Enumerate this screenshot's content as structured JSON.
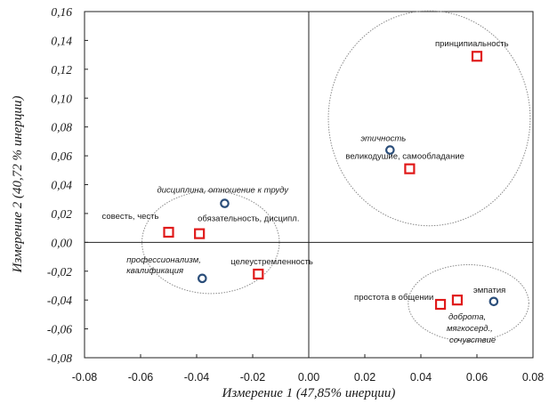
{
  "chart_data": {
    "type": "scatter",
    "title": "",
    "xlabel": "Измерение 1 (47,85% инерции)",
    "ylabel": "Измерение 2 (40,72 % инерции)",
    "xlim": [
      -0.08,
      0.08
    ],
    "ylim": [
      -0.08,
      0.16
    ],
    "x_ticks": [
      "-0.08",
      "-0.06",
      "-0.04",
      "-0.02",
      "0.00",
      "0.02",
      "0.04",
      "0.06",
      "0.08"
    ],
    "y_ticks": [
      "0,16",
      "0,14",
      "0,12",
      "0,10",
      "0,08",
      "0,06",
      "0,04",
      "0,02",
      "0,00",
      "-0,02",
      "-0,04",
      "-0,06",
      "-0,08"
    ],
    "grid": false,
    "reference_lines": {
      "x": 0,
      "y": 0
    },
    "colors": {
      "circle_marker": "#2b4e7a",
      "square_marker": "#e01a1a",
      "cluster_outline": "#8a8a8a"
    },
    "series": [
      {
        "marker": "circle",
        "points": [
          {
            "x": -0.03,
            "y": 0.027,
            "label_lines": [
              "дисциплина, отношение к труду"
            ]
          },
          {
            "x": -0.038,
            "y": -0.025,
            "label_lines": [
              "профессионализм,",
              "квалификация"
            ]
          },
          {
            "x": 0.029,
            "y": 0.064,
            "label_lines": [
              "этичность"
            ]
          },
          {
            "x": 0.066,
            "y": -0.041,
            "label_lines": [
              "эмпатия"
            ]
          }
        ]
      },
      {
        "marker": "square",
        "points": [
          {
            "x": 0.06,
            "y": 0.129,
            "label_lines": [
              "принципиальность"
            ]
          },
          {
            "x": 0.036,
            "y": 0.051,
            "label_lines": [
              "великодушие, самообладание"
            ]
          },
          {
            "x": -0.05,
            "y": 0.007,
            "label_lines": [
              "совесть, честь"
            ]
          },
          {
            "x": -0.039,
            "y": 0.006,
            "label_lines": [
              "обязательность, дисципл."
            ]
          },
          {
            "x": -0.018,
            "y": -0.022,
            "label_lines": [
              "целеустремленность"
            ]
          },
          {
            "x": 0.047,
            "y": -0.043,
            "label_lines": [
              "простота в общении"
            ]
          },
          {
            "x": 0.053,
            "y": -0.04,
            "label_lines": [
              "доброта,",
              "мягкосерд.,",
              "сочувствие"
            ]
          }
        ]
      }
    ],
    "clusters": [
      {
        "cx": -0.035,
        "cy": 0.0,
        "rx": 0.0245,
        "ry": 0.0355
      },
      {
        "cx": 0.043,
        "cy": 0.086,
        "rx": 0.036,
        "ry": 0.0745
      },
      {
        "cx": 0.057,
        "cy": -0.042,
        "rx": 0.0215,
        "ry": 0.0265
      }
    ]
  }
}
